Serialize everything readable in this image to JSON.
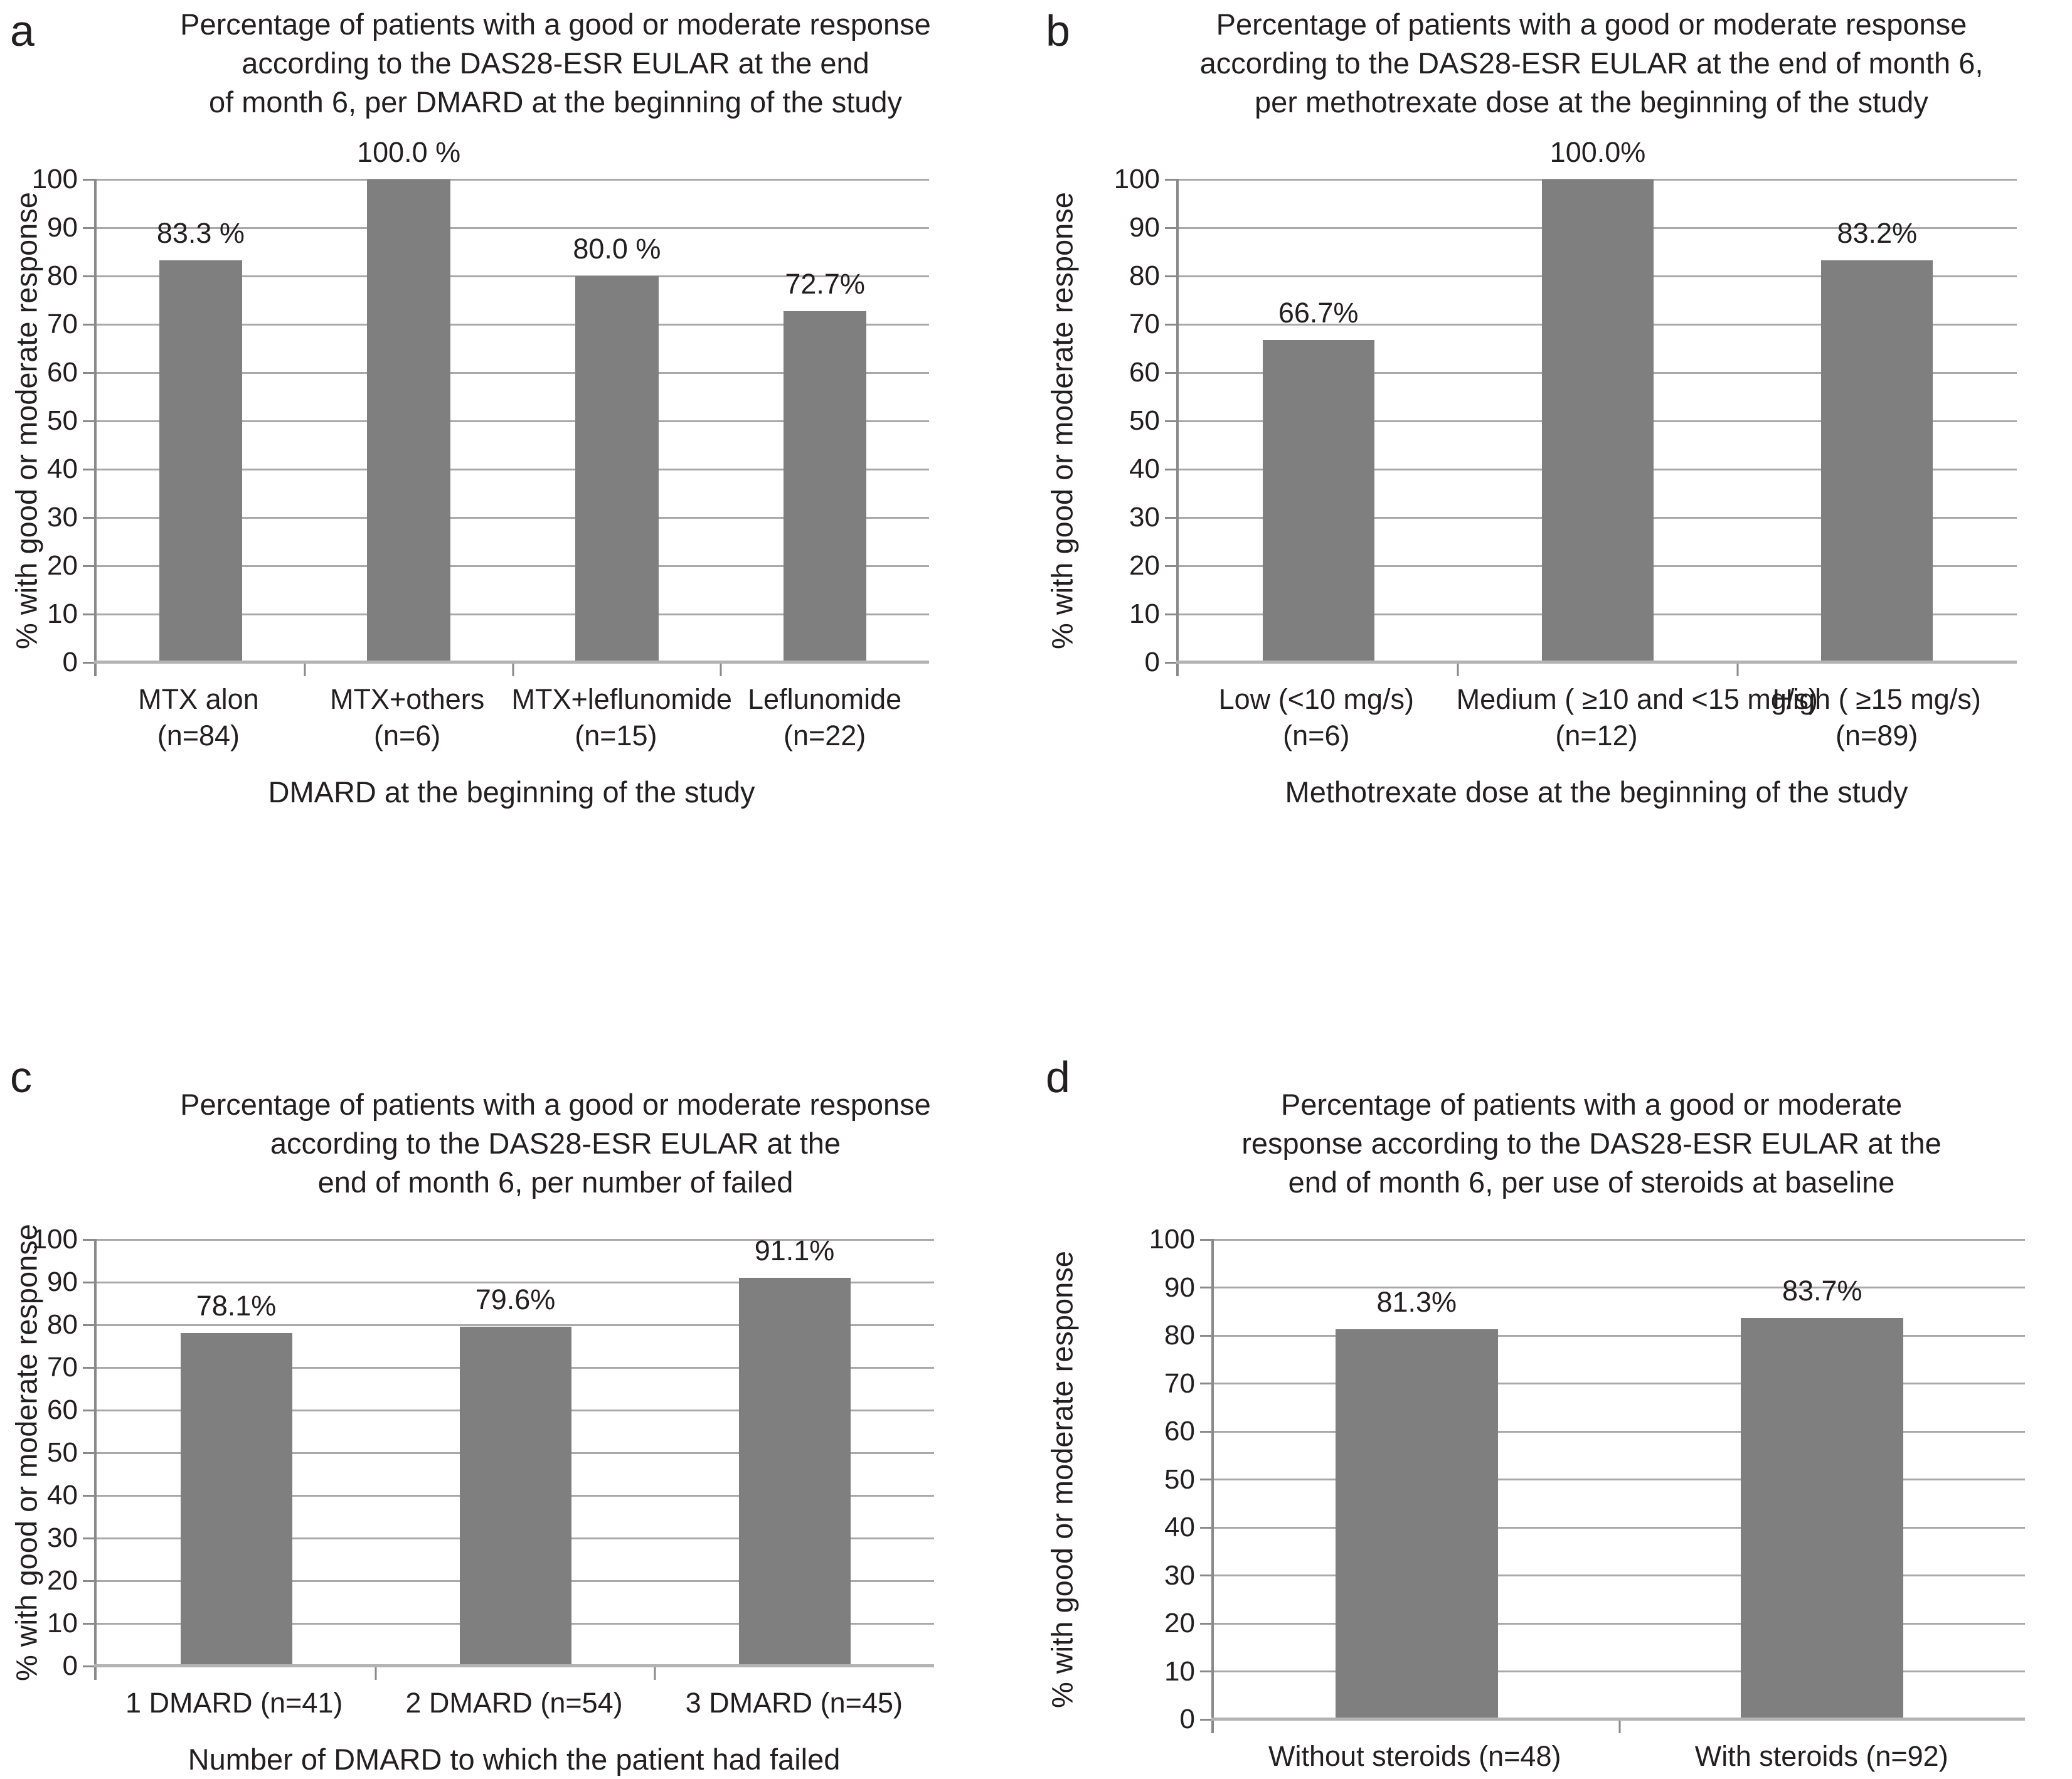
{
  "figure": {
    "colors": {
      "bar": "#7f7f7f",
      "gridline": "#a9a9a9",
      "axis": "#8a8a8a",
      "baseline": "#b3b3b3",
      "text": "#231f20"
    }
  },
  "chart_data": [
    {
      "type": "bar",
      "panel_letter": "a",
      "title_lines": [
        "Percentage of patients with a good or  moderate response",
        "according to the DAS28-ESR EULAR at the end",
        "of month 6, per DMARD at the beginning of the study"
      ],
      "ylabel": "% with good or moderate response",
      "xlabel": "DMARD at the beginning of the study",
      "ylim": [
        0,
        100
      ],
      "grid": true,
      "yticks": [
        0,
        10,
        20,
        30,
        40,
        50,
        60,
        70,
        80,
        90,
        100
      ],
      "categories": [
        [
          "MTX alon",
          "(n=84)"
        ],
        [
          "MTX+others",
          "(n=6)"
        ],
        [
          "MTX+leflunomide",
          "(n=15)"
        ],
        [
          "Leflunomide",
          "(n=22)"
        ]
      ],
      "values": [
        83.3,
        100.0,
        80.0,
        72.7
      ],
      "value_labels": [
        "83.3 %",
        "100.0 %",
        "80.0 %",
        "72.7%"
      ]
    },
    {
      "type": "bar",
      "panel_letter": "b",
      "title_lines": [
        "Percentage of patients with a good or moderate response",
        "according to the DAS28-ESR EULAR at the end of month 6,",
        "per methotrexate dose at the beginning of the study"
      ],
      "ylabel": "% with good or moderate response",
      "xlabel": "Methotrexate dose at the beginning of the study",
      "ylim": [
        0,
        100
      ],
      "grid": true,
      "yticks": [
        0,
        10,
        20,
        30,
        40,
        50,
        60,
        70,
        80,
        90,
        100
      ],
      "categories": [
        [
          "Low (<10 mg/s)",
          "(n=6)"
        ],
        [
          "Medium ( ≥10 and <15 mg/s)",
          "(n=12)"
        ],
        [
          "High ( ≥15 mg/s)",
          "(n=89)"
        ]
      ],
      "values": [
        66.7,
        100.0,
        83.2
      ],
      "value_labels": [
        "66.7%",
        "100.0%",
        "83.2%"
      ]
    },
    {
      "type": "bar",
      "panel_letter": "c",
      "title_lines": [
        "Percentage of patients with a good or moderate response",
        "according to the DAS28-ESR EULAR at the",
        "end of month 6, per number of failed"
      ],
      "ylabel": "% with good or moderate response",
      "xlabel": "Number of DMARD to which the patient had failed",
      "ylim": [
        0,
        100
      ],
      "grid": true,
      "yticks": [
        0,
        10,
        20,
        30,
        40,
        50,
        60,
        70,
        80,
        90,
        100
      ],
      "categories": [
        [
          "1 DMARD (n=41)"
        ],
        [
          "2 DMARD (n=54)"
        ],
        [
          "3 DMARD (n=45)"
        ]
      ],
      "values": [
        78.1,
        79.6,
        91.1
      ],
      "value_labels": [
        "78.1%",
        "79.6%",
        "91.1%"
      ]
    },
    {
      "type": "bar",
      "panel_letter": "d",
      "title_lines": [
        "Percentage of patients with a good or moderate",
        "response according to the DAS28-ESR EULAR at the",
        "end of month 6, per use of steroids at baseline"
      ],
      "ylabel": "% with good or moderate response",
      "ylim": [
        0,
        100
      ],
      "grid": true,
      "yticks": [
        0,
        10,
        20,
        30,
        40,
        50,
        60,
        70,
        80,
        90,
        100
      ],
      "categories": [
        [
          "Without steroids (n=48)"
        ],
        [
          "With steroids (n=92)"
        ]
      ],
      "values": [
        81.3,
        83.7
      ],
      "value_labels": [
        "81.3%",
        "83.7%"
      ]
    }
  ]
}
